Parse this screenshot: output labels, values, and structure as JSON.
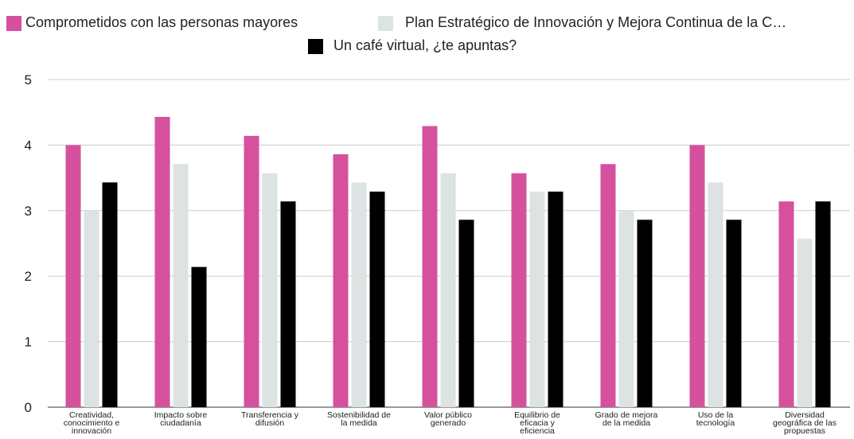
{
  "chart_data": {
    "type": "bar",
    "title": "",
    "xlabel": "",
    "ylabel": "",
    "ylim": [
      0,
      5
    ],
    "yticks": [
      0,
      1,
      2,
      3,
      4,
      5
    ],
    "grid": true,
    "legend_position": "top",
    "categories": [
      [
        "Creatividad,",
        "conocimiento e",
        "innovación"
      ],
      [
        "Impacto sobre",
        "ciudadanía"
      ],
      [
        "Transferencia y",
        "difusión"
      ],
      [
        "Sostenibilidad de",
        "la medida"
      ],
      [
        "Valor público",
        "generado"
      ],
      [
        "Equilibrio de",
        "eficacia y",
        "eficiencia"
      ],
      [
        "Grado de mejora",
        "de la medida"
      ],
      [
        "Uso de la",
        "tecnología"
      ],
      [
        "Diversidad",
        "geográfica de las",
        "propuestas"
      ]
    ],
    "series": [
      {
        "name": "Comprometidos con las personas mayores",
        "color": "#d6519d",
        "values": [
          4.0,
          4.43,
          4.14,
          3.86,
          4.29,
          3.57,
          3.71,
          4.0,
          3.14
        ]
      },
      {
        "name": "Plan Estratégico de Innovación y Mejora Continua de la C…",
        "color": "#dde2e3",
        "values": [
          3.0,
          3.71,
          3.57,
          3.43,
          3.57,
          3.29,
          3.0,
          3.43,
          2.57
        ]
      },
      {
        "name": "Un café virtual, ¿te apuntas?",
        "color": "#000000",
        "values": [
          3.43,
          2.14,
          3.14,
          3.29,
          2.86,
          3.29,
          2.86,
          2.86,
          3.14
        ]
      }
    ]
  }
}
